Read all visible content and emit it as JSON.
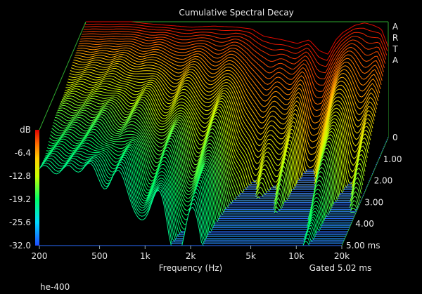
{
  "chart_data": {
    "type": "waterfall",
    "title": "Cumulative Spectral Decay",
    "xlabel": "Frequency (Hz)",
    "ylabel": "dB",
    "zlabel_note": "Gated 5.02 ms",
    "brand": "ARTA",
    "footer_label": "he-400",
    "x_scale": "log",
    "x_range": [
      200,
      20000
    ],
    "x_ticks": [
      {
        "value": 200,
        "label": "200"
      },
      {
        "value": 500,
        "label": "500"
      },
      {
        "value": 1000,
        "label": "1k"
      },
      {
        "value": 2000,
        "label": "2k"
      },
      {
        "value": 5000,
        "label": "5k"
      },
      {
        "value": 10000,
        "label": "10k"
      },
      {
        "value": 20000,
        "label": "20k"
      }
    ],
    "y_range": [
      -32.0,
      0
    ],
    "y_ticks": [
      "dB",
      "-6.4",
      "-12.8",
      "-19.2",
      "-25.6",
      "-32.0"
    ],
    "y_tick_values": [
      0,
      -6.4,
      -12.8,
      -19.2,
      -25.6,
      -32.0
    ],
    "time_range_ms": [
      0,
      5.0
    ],
    "time_ticks": [
      {
        "value": 0,
        "label": "0"
      },
      {
        "value": 1.0,
        "label": "1.00"
      },
      {
        "value": 2.0,
        "label": "2.00"
      },
      {
        "value": 3.0,
        "label": "3.00"
      },
      {
        "value": 4.0,
        "label": "4.00"
      },
      {
        "value": 5.0,
        "label": "5.00 ms"
      }
    ],
    "initial_response": {
      "freq": [
        200,
        300,
        400,
        500,
        700,
        1000,
        1400,
        2000,
        2500,
        3000,
        4000,
        5000,
        6000,
        7000,
        8000,
        9000,
        10000,
        12000,
        14000,
        16000,
        18000,
        20000
      ],
      "db": [
        0,
        0,
        0,
        -0.5,
        -1.0,
        -1.5,
        -1.2,
        -1.5,
        -2.0,
        -4.0,
        -5.0,
        -6.0,
        -5.0,
        -8.0,
        -9.0,
        -5.0,
        -3.0,
        -1.0,
        -0.3,
        -1.0,
        -2.0,
        -7.0
      ]
    },
    "color_scale": [
      "#1e4bff",
      "#00d8ff",
      "#00ff66",
      "#c8ff00",
      "#ffd000",
      "#ff6a00",
      "#e00000"
    ]
  }
}
